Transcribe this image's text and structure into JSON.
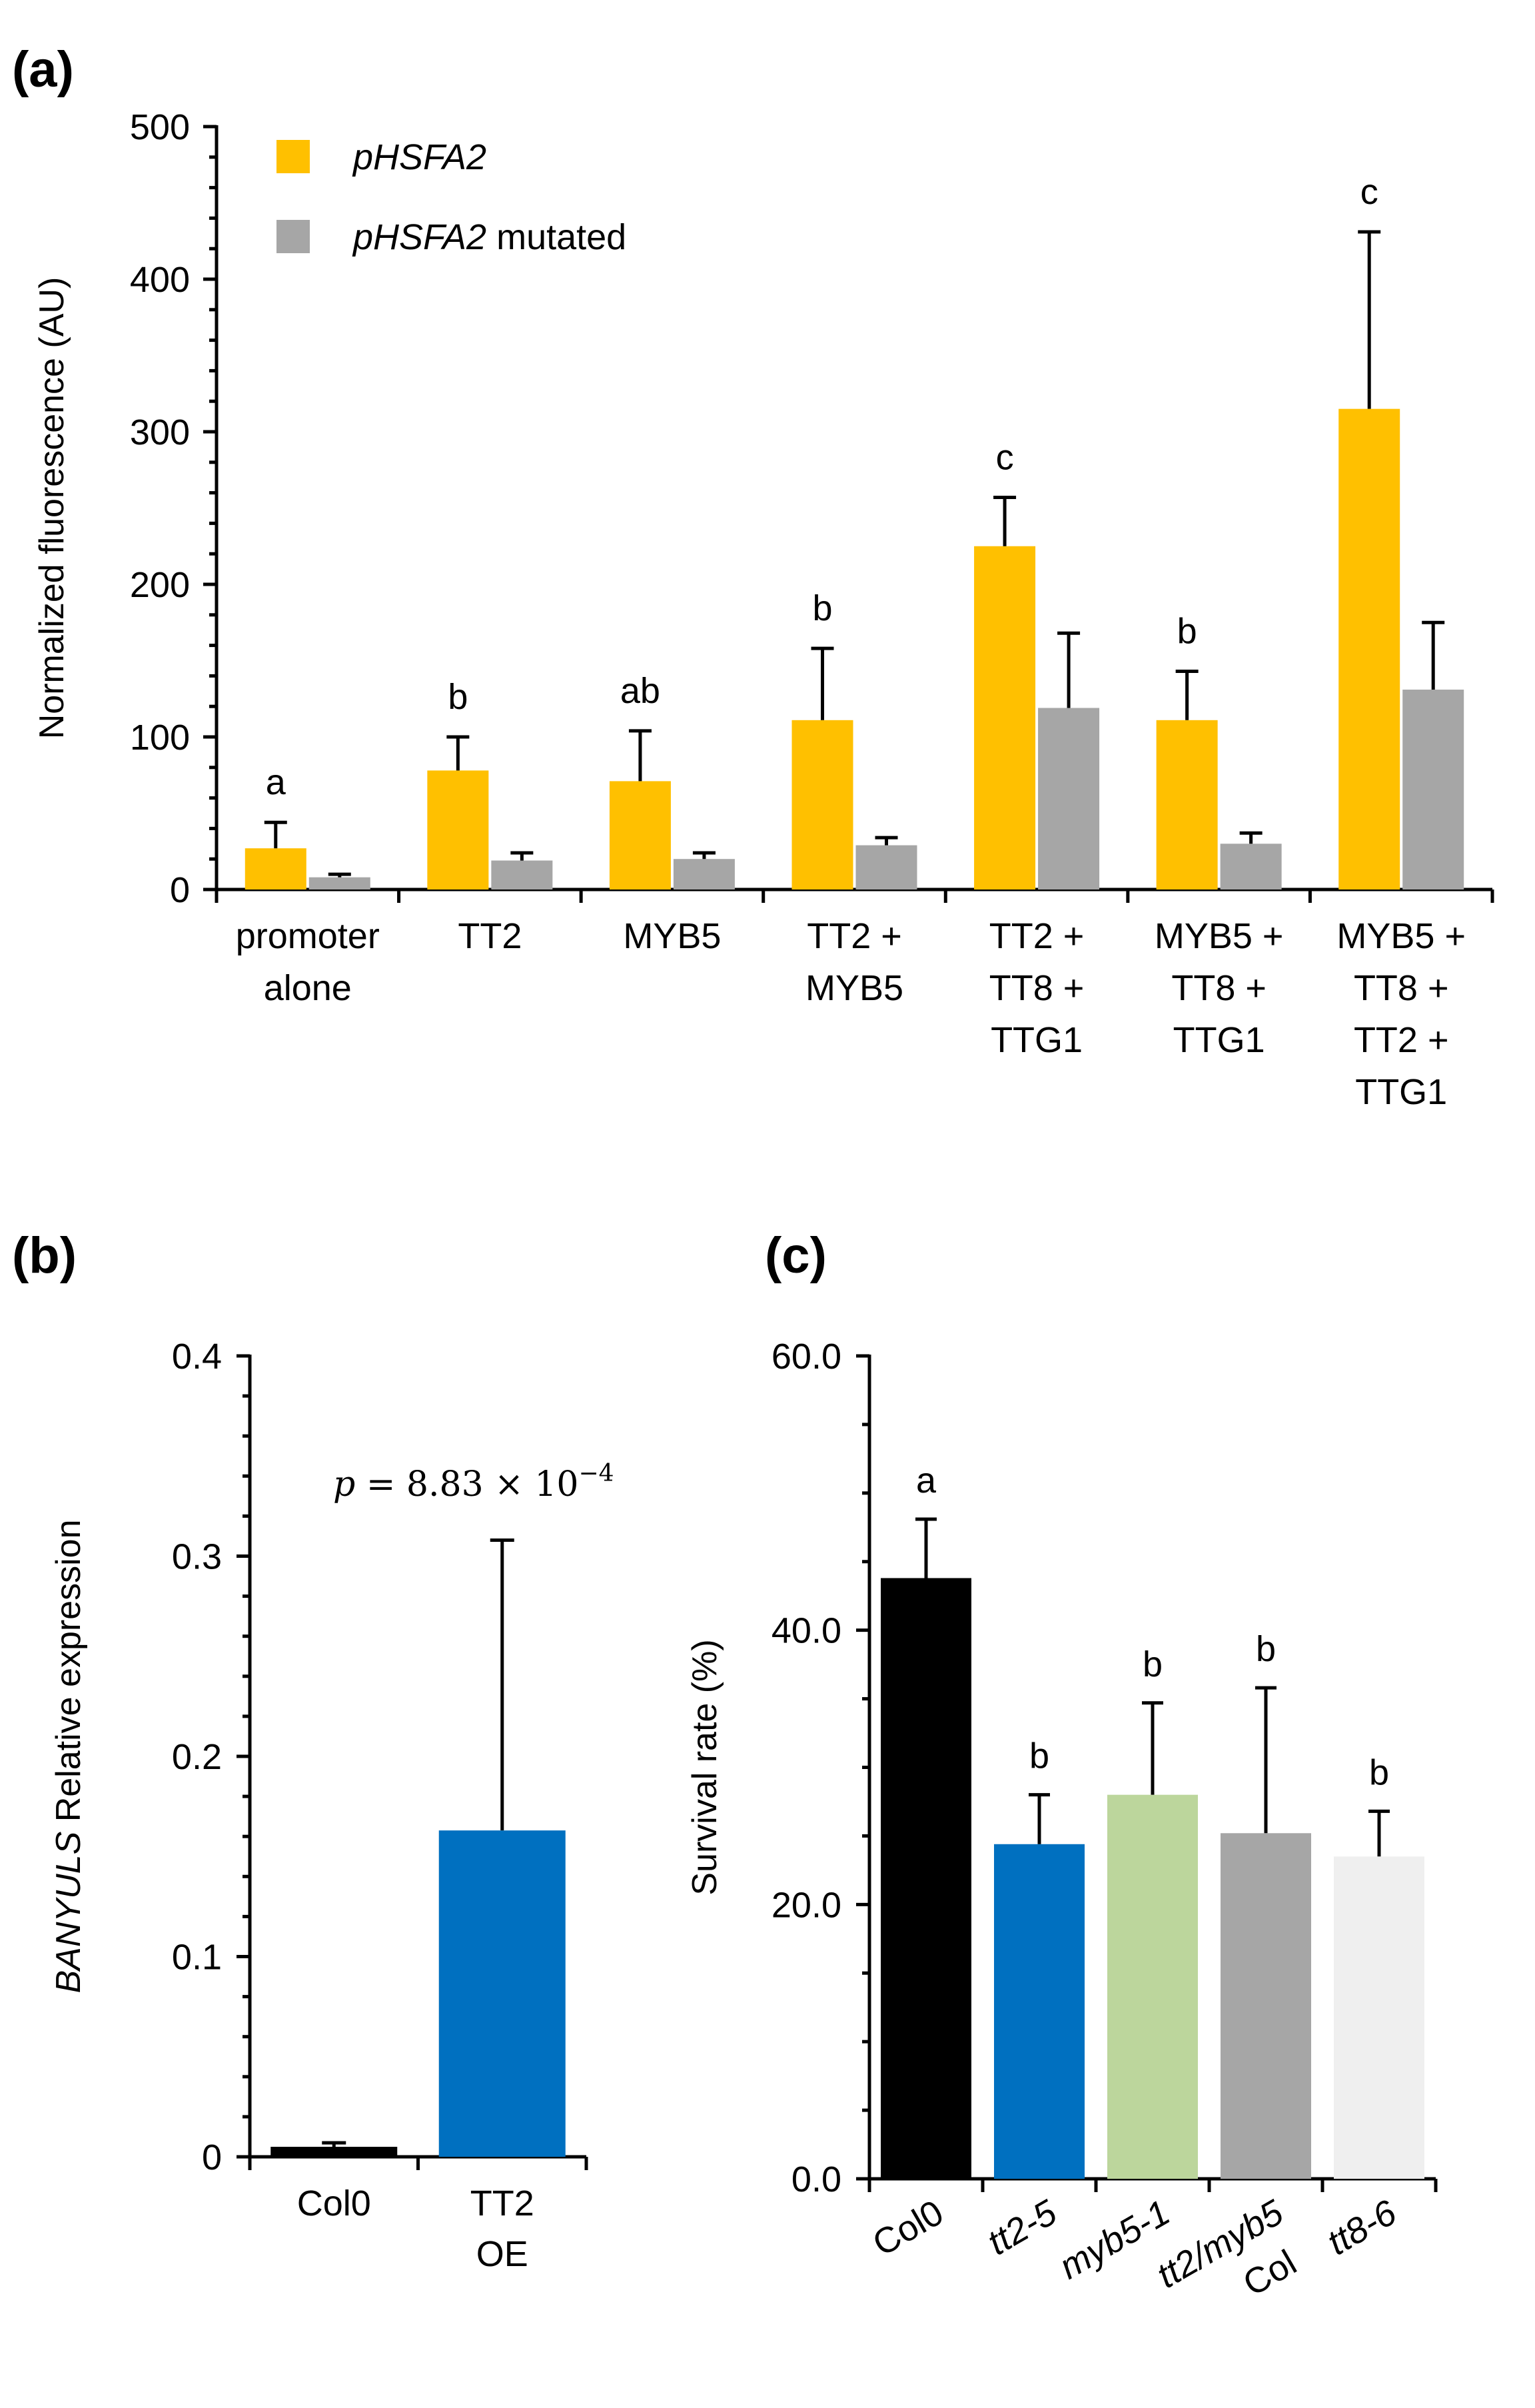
{
  "chart_data": [
    {
      "panel": "(a)",
      "type": "bar",
      "title": "",
      "ylabel": "Normalized  fluorescence (AU)",
      "xlabel": "",
      "ylim": [
        0,
        500
      ],
      "yticks": [
        0,
        100,
        200,
        300,
        400,
        500
      ],
      "legend_position": "top-left",
      "categories": [
        [
          "promoter",
          "alone"
        ],
        [
          "TT2"
        ],
        [
          "MYB5"
        ],
        [
          "TT2 +",
          "MYB5"
        ],
        [
          "TT2 +",
          "TT8 +",
          "TTG1"
        ],
        [
          "MYB5 +",
          "TT8 +",
          "TTG1"
        ],
        [
          "MYB5 +",
          "TT8 +",
          "TT2 +",
          "TTG1"
        ]
      ],
      "series": [
        {
          "name": "pHSFA2",
          "name_italic": "pHSFA2",
          "name_suffix": "",
          "color": "#FFC000",
          "values": [
            27,
            78,
            71,
            111,
            225,
            111,
            315
          ],
          "errors": [
            17,
            22,
            33,
            47,
            32,
            32,
            116
          ]
        },
        {
          "name": "pHSFA2 mutated",
          "name_italic": "pHSFA2",
          "name_suffix": " mutated",
          "color": "#A6A6A6",
          "values": [
            8,
            19,
            20,
            29,
            119,
            30,
            131
          ],
          "errors": [
            2,
            5,
            4,
            5,
            49,
            7,
            44
          ]
        }
      ],
      "significance": [
        "a",
        "b",
        "ab",
        "b",
        "c",
        "b",
        "c"
      ]
    },
    {
      "panel": "(b)",
      "type": "bar",
      "title": "",
      "ylabel_italic": "BANYULS",
      "ylabel_rest": " Relative  expression",
      "ylim": [
        0,
        0.4
      ],
      "yticks": [
        "0",
        "0.1",
        "0.2",
        "0.3",
        "0.4"
      ],
      "categories": [
        [
          "Col0"
        ],
        [
          "TT2",
          "OE"
        ]
      ],
      "values": [
        0.005,
        0.163
      ],
      "errors": [
        0.002,
        0.145
      ],
      "colors": [
        "#000000",
        "#0070C0"
      ],
      "annotation": {
        "p": "p",
        "eq": " = 8.83 × 10",
        "exp": "−4"
      }
    },
    {
      "panel": "(c)",
      "type": "bar",
      "title": "",
      "ylabel": "Survival  rate (%)",
      "ylim": [
        0,
        60
      ],
      "yticks": [
        "0.0",
        "20.0",
        "40.0",
        "60.0"
      ],
      "categories": [
        [
          "Col0"
        ],
        [
          "tt2-5"
        ],
        [
          "myb5-1"
        ],
        [
          "tt2/myb5",
          "Col"
        ],
        [
          "tt8-6"
        ]
      ],
      "category_italic": [
        false,
        true,
        true,
        true,
        true
      ],
      "values": [
        43.8,
        24.4,
        28.0,
        25.2,
        23.5
      ],
      "errors": [
        4.3,
        3.6,
        6.7,
        10.6,
        3.3
      ],
      "colors": [
        "#000000",
        "#0070C0",
        "#BCD69C",
        "#A6A6A6",
        "#EFEFEF"
      ],
      "significance": [
        "a",
        "b",
        "b",
        "b",
        "b"
      ]
    }
  ]
}
